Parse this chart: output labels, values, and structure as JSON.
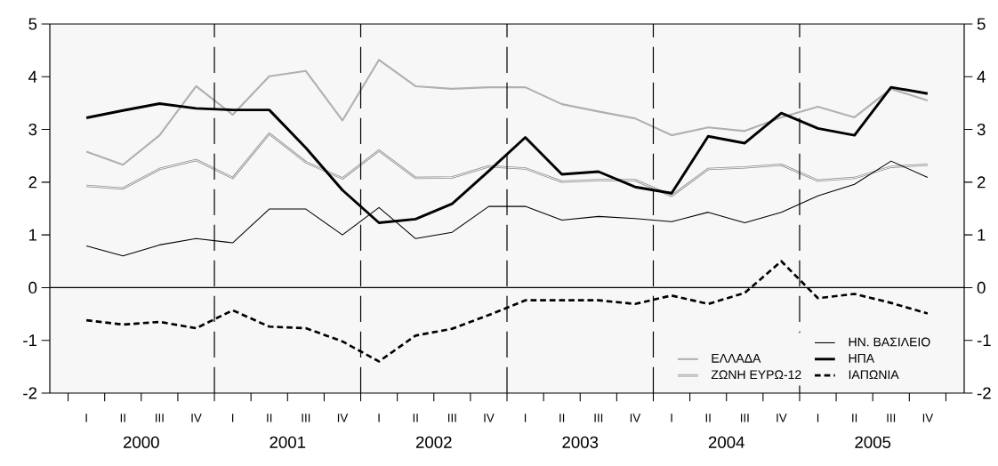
{
  "chart_data": {
    "type": "line",
    "categories": [
      "I",
      "II",
      "III",
      "IV",
      "I",
      "II",
      "III",
      "IV",
      "I",
      "II",
      "III",
      "IV",
      "I",
      "II",
      "III",
      "IV",
      "I",
      "II",
      "III",
      "IV",
      "I",
      "II",
      "III",
      "IV"
    ],
    "series": [
      {
        "name": "ΕΛΛΑΔΑ",
        "color": "#b0b0b0",
        "line_style": "solid",
        "values": [
          2.58,
          2.33,
          2.89,
          3.82,
          3.28,
          4.01,
          4.11,
          3.17,
          4.32,
          3.82,
          3.77,
          3.8,
          3.8,
          3.48,
          3.34,
          3.21,
          2.89,
          3.04,
          2.97,
          3.23,
          3.43,
          3.23,
          3.77,
          3.55
        ]
      },
      {
        "name": "ΖΩΝΗ ΕΥΡΩ-12",
        "color": "#8c8c8c",
        "line_style": "solid",
        "values": [
          1.93,
          1.88,
          2.25,
          2.42,
          2.08,
          2.92,
          2.38,
          2.07,
          2.6,
          2.08,
          2.09,
          2.3,
          2.26,
          2.01,
          2.04,
          2.04,
          1.74,
          2.25,
          2.28,
          2.33,
          2.03,
          2.08,
          2.29,
          2.33
        ]
      },
      {
        "name": "ΗΝ. ΒΑΣΙΛΕΙΟ",
        "color": "#000000",
        "line_style": "solid",
        "values": [
          0.79,
          0.6,
          0.81,
          0.93,
          0.85,
          1.49,
          1.49,
          1.0,
          1.52,
          0.93,
          1.05,
          1.54,
          1.54,
          1.28,
          1.35,
          1.31,
          1.25,
          1.43,
          1.23,
          1.43,
          1.74,
          1.96,
          2.4,
          2.09
        ]
      },
      {
        "name": "ΗΠΑ",
        "color": "#000000",
        "line_style": "solid",
        "values": [
          3.22,
          3.36,
          3.49,
          3.4,
          3.37,
          3.37,
          2.65,
          1.85,
          1.23,
          1.3,
          1.59,
          2.21,
          2.85,
          2.15,
          2.2,
          1.91,
          1.79,
          2.87,
          2.74,
          3.31,
          3.02,
          2.89,
          3.8,
          3.68
        ]
      },
      {
        "name": "ΙΑΠΩΝΙΑ",
        "color": "#000000",
        "line_style": "dashed",
        "values": [
          -0.62,
          -0.7,
          -0.65,
          -0.77,
          -0.43,
          -0.74,
          -0.77,
          -1.02,
          -1.4,
          -0.91,
          -0.78,
          -0.52,
          -0.24,
          -0.24,
          -0.24,
          -0.31,
          -0.15,
          -0.31,
          -0.1,
          0.5,
          -0.2,
          -0.12,
          -0.29,
          -0.49
        ]
      }
    ],
    "ylim": [
      -2,
      5
    ],
    "yticks": [
      -2,
      -1,
      0,
      1,
      2,
      3,
      4,
      5
    ],
    "y2lim": [
      -2,
      5
    ],
    "y2ticks": [
      -2,
      -1,
      0,
      1,
      2,
      3,
      4,
      5
    ],
    "annotations": [
      "2000",
      "2001",
      "2002",
      "2003",
      "2004",
      "2005"
    ],
    "ref_lines": [
      {
        "axis": "y",
        "value": 0,
        "line_style": "solid"
      }
    ],
    "legend": "bottom right",
    "marker": "none"
  }
}
